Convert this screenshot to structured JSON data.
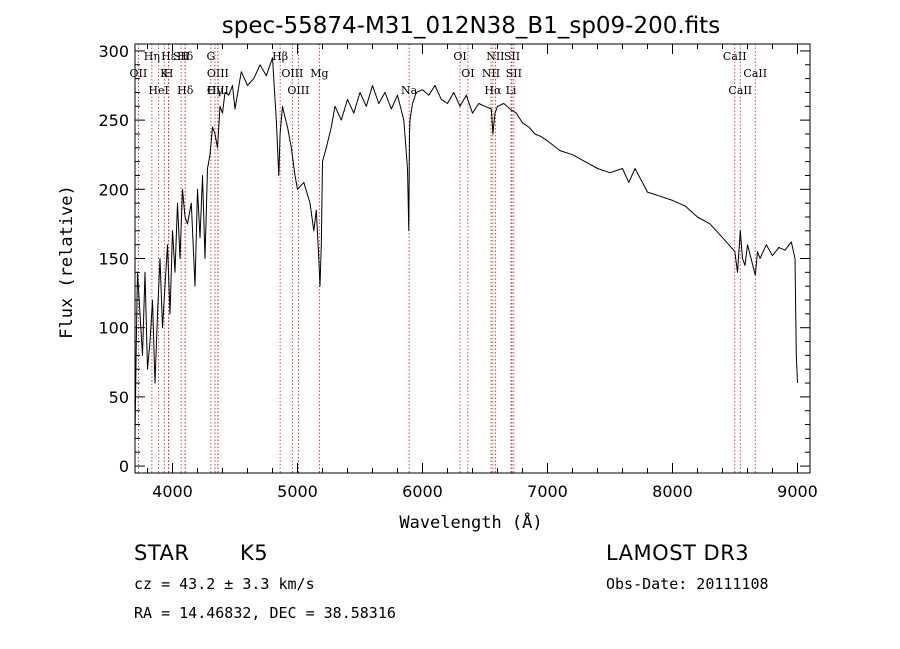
{
  "chart_data": {
    "type": "line",
    "title": "spec-55874-M31_012N38_B1_sp09-200.fits",
    "xlabel": "Wavelength (Å)",
    "ylabel": "Flux (relative)",
    "xlim": [
      3700,
      9100
    ],
    "ylim": [
      -5,
      305
    ],
    "xticks": [
      4000,
      5000,
      6000,
      7000,
      8000,
      9000
    ],
    "yticks": [
      0,
      50,
      100,
      150,
      200,
      250,
      300
    ],
    "grid": false,
    "series": [
      {
        "name": "flux",
        "x": [
          3700,
          3710,
          3720,
          3740,
          3760,
          3780,
          3800,
          3820,
          3840,
          3860,
          3880,
          3900,
          3920,
          3940,
          3960,
          3980,
          4000,
          4020,
          4040,
          4060,
          4080,
          4100,
          4120,
          4150,
          4180,
          4200,
          4220,
          4240,
          4260,
          4280,
          4300,
          4320,
          4340,
          4360,
          4380,
          4400,
          4420,
          4450,
          4480,
          4500,
          4550,
          4600,
          4650,
          4700,
          4750,
          4800,
          4830,
          4850,
          4861,
          4880,
          4900,
          4920,
          4950,
          4980,
          5000,
          5050,
          5100,
          5130,
          5150,
          5170,
          5180,
          5190,
          5200,
          5230,
          5270,
          5300,
          5350,
          5400,
          5450,
          5500,
          5550,
          5600,
          5650,
          5700,
          5750,
          5800,
          5850,
          5880,
          5890,
          5896,
          5900,
          5920,
          5950,
          6000,
          6050,
          6100,
          6150,
          6200,
          6250,
          6300,
          6350,
          6400,
          6450,
          6500,
          6550,
          6563,
          6580,
          6600,
          6650,
          6700,
          6750,
          6800,
          6850,
          6900,
          6950,
          7000,
          7100,
          7200,
          7300,
          7400,
          7500,
          7600,
          7650,
          7700,
          7800,
          7900,
          8000,
          8100,
          8200,
          8300,
          8400,
          8450,
          8498,
          8520,
          8542,
          8560,
          8580,
          8600,
          8662,
          8680,
          8700,
          8750,
          8800,
          8850,
          8900,
          8950,
          8980,
          8990,
          9000
        ],
        "values": [
          20,
          90,
          140,
          110,
          80,
          140,
          70,
          90,
          120,
          60,
          110,
          150,
          100,
          130,
          160,
          110,
          170,
          140,
          190,
          150,
          200,
          180,
          175,
          190,
          130,
          200,
          165,
          210,
          150,
          215,
          225,
          245,
          240,
          230,
          260,
          255,
          270,
          268,
          275,
          258,
          285,
          275,
          280,
          290,
          282,
          295,
          250,
          210,
          240,
          260,
          252,
          245,
          230,
          210,
          200,
          205,
          190,
          170,
          185,
          150,
          130,
          160,
          220,
          230,
          245,
          260,
          250,
          265,
          255,
          270,
          260,
          275,
          262,
          270,
          258,
          268,
          250,
          215,
          170,
          240,
          250,
          262,
          270,
          272,
          268,
          275,
          265,
          262,
          270,
          260,
          268,
          255,
          262,
          260,
          258,
          240,
          255,
          260,
          262,
          258,
          255,
          248,
          245,
          240,
          238,
          235,
          228,
          225,
          220,
          215,
          212,
          215,
          205,
          215,
          198,
          195,
          192,
          188,
          180,
          175,
          165,
          160,
          155,
          140,
          170,
          150,
          145,
          160,
          138,
          155,
          150,
          160,
          152,
          158,
          156,
          162,
          150,
          80,
          60
        ]
      }
    ],
    "annotations": [
      {
        "label": "Hδ",
        "x": 4101
      },
      {
        "label": "OII",
        "x": 3727
      },
      {
        "label": "OIII",
        "x": 4363
      },
      {
        "label": "Hε",
        "x": 3970
      },
      {
        "label": "K",
        "x": 3934
      },
      {
        "label": "HeI",
        "x": 3889
      },
      {
        "label": "Hη",
        "x": 3835
      },
      {
        "label": "H",
        "x": 3968
      },
      {
        "label": "Hδ",
        "x": 4102
      },
      {
        "label": "SII",
        "x": 4069
      },
      {
        "label": "OIII",
        "x": 4363
      },
      {
        "label": "Hγ",
        "x": 4340
      },
      {
        "label": "G",
        "x": 4307
      },
      {
        "label": "OIII",
        "x": 4959
      },
      {
        "label": "OIII",
        "x": 5007
      },
      {
        "label": "Hβ",
        "x": 4861
      },
      {
        "label": "Mg",
        "x": 5175
      },
      {
        "label": "Na",
        "x": 5893
      },
      {
        "label": "OI",
        "x": 6300
      },
      {
        "label": "OI",
        "x": 6363
      },
      {
        "label": "Hα",
        "x": 6563
      },
      {
        "label": "SII",
        "x": 6716
      },
      {
        "label": "NII",
        "x": 6548
      },
      {
        "label": "Li",
        "x": 6708
      },
      {
        "label": "NII",
        "x": 6583
      },
      {
        "label": "SII",
        "x": 6731
      },
      {
        "label": "CaII",
        "x": 8542
      },
      {
        "label": "CaII",
        "x": 8498
      },
      {
        "label": "CaII",
        "x": 8662
      }
    ]
  },
  "info": {
    "class_label": "STAR",
    "subclass": "K5",
    "survey": "LAMOST DR3",
    "cz": "cz = 43.2 ± 3.3 km/s",
    "obs_date": "Obs-Date: 20111108",
    "coords": "RA =  14.46832, DEC =  38.58316"
  },
  "colors": {
    "line": "#000000",
    "marker_lines": "#b22222",
    "axes": "#000000"
  }
}
